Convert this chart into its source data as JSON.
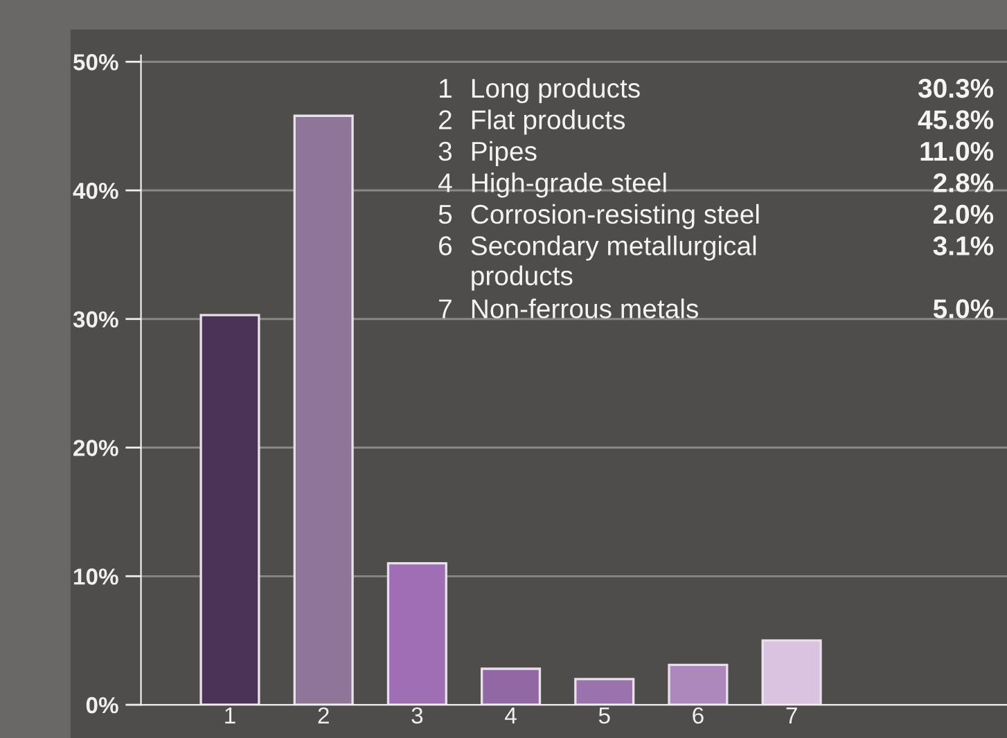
{
  "chart_data": {
    "type": "bar",
    "categories": [
      "1",
      "2",
      "3",
      "4",
      "5",
      "6",
      "7"
    ],
    "values": [
      30.3,
      45.8,
      11.0,
      2.8,
      2.0,
      3.1,
      5.0
    ],
    "colors": [
      "#4a3356",
      "#8f7598",
      "#a06eb4",
      "#9268a4",
      "#9a72ac",
      "#ad88bd",
      "#d9c3e1"
    ],
    "annotations": [
      "Long products",
      "Flat products",
      "Pipes",
      "High-grade steel",
      "Corrosion-resisting steel",
      "Secondary metallurgical\nproducts",
      "Non-ferrous metals",
      "30.3%",
      "45.8%",
      "11.0%",
      "2.8%",
      "2.0%",
      "3.1%",
      "5.0%"
    ],
    "ylim": [
      0,
      50.5
    ],
    "yticks": [
      {
        "value": 0,
        "label": "0%"
      },
      {
        "value": 10,
        "label": "10%"
      },
      {
        "value": 20,
        "label": "20%"
      },
      {
        "value": 30,
        "label": "30%"
      },
      {
        "value": 40,
        "label": "40%"
      },
      {
        "value": 50,
        "label": "50%"
      }
    ],
    "grid": "y"
  }
}
